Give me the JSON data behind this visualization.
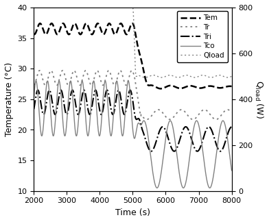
{
  "xlabel": "Time (s)",
  "ylabel_left": "Temperature (°C)",
  "ylabel_right": "Q$_\\mathrm{load}$ (W)",
  "xlim": [
    2000,
    8000
  ],
  "ylim_left": [
    10,
    40
  ],
  "ylim_right": [
    0,
    800
  ],
  "xticks": [
    2000,
    3000,
    4000,
    5000,
    6000,
    7000,
    8000
  ],
  "yticks_left": [
    10,
    15,
    20,
    25,
    30,
    35,
    40
  ],
  "yticks_right": [
    0,
    200,
    400,
    600,
    800
  ],
  "legend_labels": [
    "Tem",
    "Tr",
    "Tri",
    "Tco",
    "Qload"
  ],
  "background_color": "#ffffff",
  "Tem_base_before": 36.5,
  "Tem_amp_before": 0.9,
  "Tem_period_before": 350,
  "Tem_after": 27.0,
  "Tem_drop_start": 5000,
  "Tem_drop_end": 5500,
  "Tr_base_before": 28.5,
  "Tr_amp_before": 1.2,
  "Tr_period_before": 350,
  "Tr_after_base": 22.5,
  "Tr_drop_start": 5050,
  "Tr_drop_end": 5200,
  "Qload_before": 800,
  "Qload_after": 500,
  "Qload_drop_start": 5000,
  "Qload_drop_end": 5100
}
